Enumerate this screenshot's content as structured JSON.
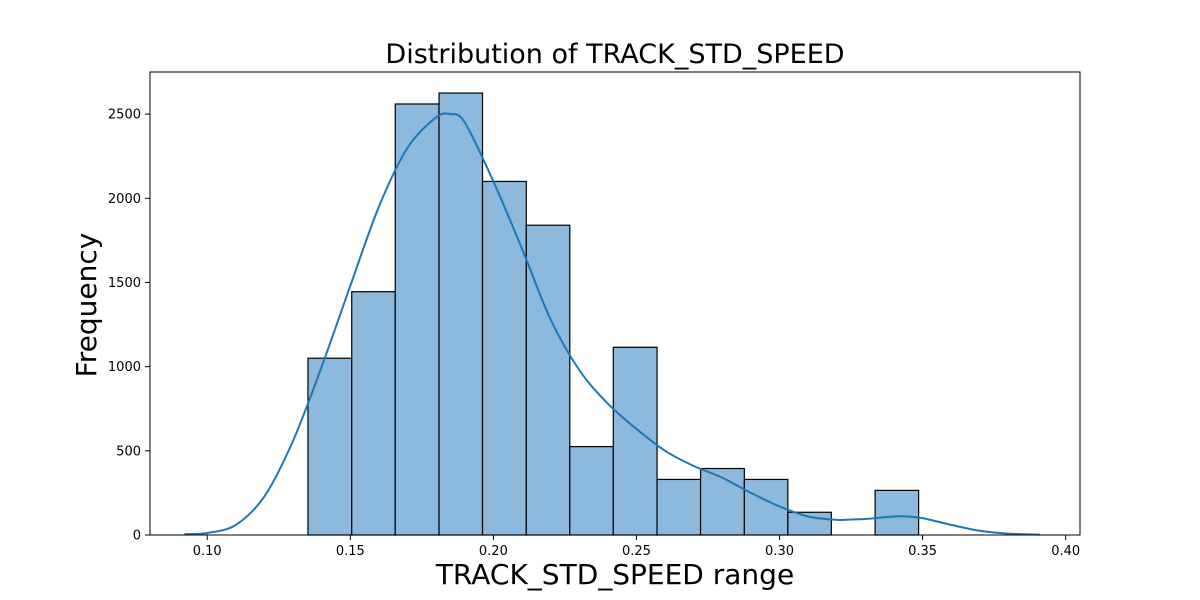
{
  "chart_data": {
    "type": "bar",
    "title": "Distribution of TRACK_STD_SPEED",
    "xlabel": "TRACK_STD_SPEED range",
    "ylabel": "Frequency",
    "xlim": [
      0.08,
      0.405
    ],
    "ylim": [
      0,
      2750
    ],
    "xticks": [
      0.1,
      0.15,
      0.2,
      0.25,
      0.3,
      0.35,
      0.4
    ],
    "xtick_labels": [
      "0.10",
      "0.15",
      "0.20",
      "0.25",
      "0.30",
      "0.35",
      "0.40"
    ],
    "yticks": [
      0,
      500,
      1000,
      1500,
      2000,
      2500
    ],
    "ytick_labels": [
      "0",
      "500",
      "1000",
      "1500",
      "2000",
      "2500"
    ],
    "bin_edges": [
      0.1352,
      0.1505,
      0.1657,
      0.181,
      0.1962,
      0.2115,
      0.2267,
      0.2419,
      0.2572,
      0.2724,
      0.2877,
      0.3029,
      0.3181,
      0.3334,
      0.3486
    ],
    "values": [
      1050,
      1445,
      2560,
      2625,
      2100,
      1840,
      525,
      1115,
      330,
      395,
      330,
      135,
      0,
      265
    ],
    "kde": {
      "x": [
        0.092,
        0.1,
        0.11,
        0.12,
        0.13,
        0.14,
        0.15,
        0.16,
        0.17,
        0.18,
        0.185,
        0.19,
        0.2,
        0.21,
        0.22,
        0.23,
        0.24,
        0.25,
        0.26,
        0.27,
        0.28,
        0.29,
        0.3,
        0.31,
        0.32,
        0.325,
        0.33,
        0.34,
        0.345,
        0.35,
        0.36,
        0.37,
        0.38,
        0.391
      ],
      "y": [
        5,
        12,
        60,
        230,
        560,
        1000,
        1480,
        1950,
        2300,
        2480,
        2500,
        2450,
        2100,
        1700,
        1280,
        980,
        780,
        630,
        500,
        410,
        340,
        250,
        170,
        110,
        90,
        92,
        95,
        110,
        110,
        100,
        60,
        25,
        8,
        2
      ]
    },
    "bar_color": "#8db9dc",
    "bar_edge_color": "#000000",
    "kde_color": "#1f77b4",
    "grid": false,
    "legend": "none"
  }
}
